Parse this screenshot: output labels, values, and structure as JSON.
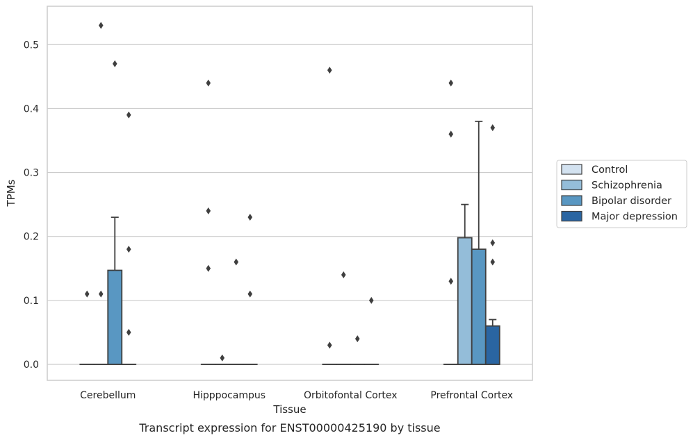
{
  "chart_data": {
    "type": "box",
    "title": "",
    "caption": "Transcript expression for ENST00000425190 by tissue",
    "xlabel": "Tissue",
    "ylabel": "TPMs",
    "ylim": [
      -0.025,
      0.56
    ],
    "yticks": [
      "0.0",
      "0.1",
      "0.2",
      "0.3",
      "0.4",
      "0.5"
    ],
    "ytick_values": [
      0.0,
      0.1,
      0.2,
      0.3,
      0.4,
      0.5
    ],
    "grid": true,
    "legend_position": "right",
    "categories": [
      "Cerebellum",
      "Hipppocampus",
      "Orbitofontal Cortex",
      "Prefrontal Cortex"
    ],
    "series": [
      {
        "name": "Control",
        "color": "#d3e2f0",
        "boxes": [
          {
            "q1": 0,
            "median": 0,
            "q3": 0,
            "whisker_low": 0,
            "whisker_high": 0,
            "outliers": [
              0.11
            ]
          },
          {
            "q1": 0,
            "median": 0,
            "q3": 0,
            "whisker_low": 0,
            "whisker_high": 0,
            "outliers": [
              0.44,
              0.24,
              0.15
            ]
          },
          {
            "q1": 0,
            "median": 0,
            "q3": 0,
            "whisker_low": 0,
            "whisker_high": 0,
            "outliers": [
              0.46,
              0.03
            ]
          },
          {
            "q1": 0,
            "median": 0,
            "q3": 0,
            "whisker_low": 0,
            "whisker_high": 0,
            "outliers": [
              0.44,
              0.36,
              0.13
            ]
          }
        ]
      },
      {
        "name": "Schizophrenia",
        "color": "#94bdd9",
        "boxes": [
          {
            "q1": 0,
            "median": 0,
            "q3": 0,
            "whisker_low": 0,
            "whisker_high": 0,
            "outliers": [
              0.53,
              0.11
            ]
          },
          {
            "q1": 0,
            "median": 0,
            "q3": 0,
            "whisker_low": 0,
            "whisker_high": 0,
            "outliers": [
              0.01
            ]
          },
          {
            "q1": 0,
            "median": 0,
            "q3": 0,
            "whisker_low": 0,
            "whisker_high": 0,
            "outliers": [
              0.14
            ]
          },
          {
            "q1": 0,
            "median": 0,
            "q3": 0.198,
            "whisker_low": 0,
            "whisker_high": 0.25,
            "outliers": []
          }
        ]
      },
      {
        "name": "Bipolar disorder",
        "color": "#5997c2",
        "boxes": [
          {
            "q1": 0,
            "median": 0,
            "q3": 0.147,
            "whisker_low": 0,
            "whisker_high": 0.23,
            "outliers": [
              0.47
            ]
          },
          {
            "q1": 0,
            "median": 0,
            "q3": 0,
            "whisker_low": 0,
            "whisker_high": 0,
            "outliers": [
              0.16
            ]
          },
          {
            "q1": 0,
            "median": 0,
            "q3": 0,
            "whisker_low": 0,
            "whisker_high": 0,
            "outliers": [
              0.04
            ]
          },
          {
            "q1": 0,
            "median": 0,
            "q3": 0.18,
            "whisker_low": 0,
            "whisker_high": 0.38,
            "outliers": []
          }
        ]
      },
      {
        "name": "Major depression",
        "color": "#2a65a2",
        "boxes": [
          {
            "q1": 0,
            "median": 0,
            "q3": 0,
            "whisker_low": 0,
            "whisker_high": 0,
            "outliers": [
              0.39,
              0.18,
              0.05
            ]
          },
          {
            "q1": 0,
            "median": 0,
            "q3": 0,
            "whisker_low": 0,
            "whisker_high": 0,
            "outliers": [
              0.23,
              0.11
            ]
          },
          {
            "q1": 0,
            "median": 0,
            "q3": 0,
            "whisker_low": 0,
            "whisker_high": 0,
            "outliers": [
              0.1
            ]
          },
          {
            "q1": 0,
            "median": 0,
            "q3": 0.06,
            "whisker_low": 0,
            "whisker_high": 0.07,
            "outliers": [
              0.37,
              0.19,
              0.16
            ]
          }
        ]
      }
    ]
  }
}
